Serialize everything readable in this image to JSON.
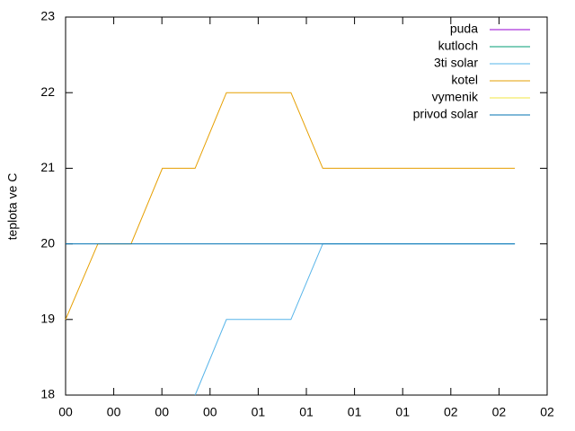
{
  "chart_data": {
    "type": "line",
    "y_label": "teplota ve C",
    "x": [
      0,
      0.67,
      1.36,
      2.01,
      2.69,
      3.34,
      4.68,
      5.34,
      9.33
    ],
    "xlim": [
      0,
      10
    ],
    "xticks": [
      {
        "value": 0,
        "label": "00"
      },
      {
        "value": 1,
        "label": "00"
      },
      {
        "value": 2,
        "label": "00"
      },
      {
        "value": 3,
        "label": "00"
      },
      {
        "value": 4,
        "label": "01"
      },
      {
        "value": 5,
        "label": "01"
      },
      {
        "value": 6,
        "label": "01"
      },
      {
        "value": 7,
        "label": "01"
      },
      {
        "value": 8,
        "label": "02"
      },
      {
        "value": 9,
        "label": "02"
      },
      {
        "value": 10,
        "label": "02"
      }
    ],
    "ylim": [
      18,
      23
    ],
    "yticks": [
      18,
      19,
      20,
      21,
      22,
      23
    ],
    "legend": "top-right",
    "series": [
      {
        "name": "puda",
        "color": "#9400d3",
        "values": [
          null,
          null,
          null,
          null,
          null,
          null,
          null,
          null,
          null
        ]
      },
      {
        "name": "kutloch",
        "color": "#009e73",
        "values": [
          null,
          null,
          null,
          null,
          null,
          null,
          null,
          null,
          null
        ]
      },
      {
        "name": "3ti solar",
        "color": "#56b4e9",
        "values": [
          null,
          null,
          null,
          null,
          18,
          19,
          19,
          20,
          20
        ]
      },
      {
        "name": "kotel",
        "color": "#e69f00",
        "values": [
          19,
          20,
          20,
          21,
          21,
          22,
          22,
          21,
          21
        ]
      },
      {
        "name": "vymenik",
        "color": "#f0e442",
        "values": [
          null,
          null,
          null,
          null,
          null,
          null,
          null,
          null,
          null
        ]
      },
      {
        "name": "privod solar",
        "color": "#0072b2",
        "values": [
          20,
          20,
          20,
          20,
          20,
          20,
          20,
          20,
          20
        ]
      }
    ]
  }
}
